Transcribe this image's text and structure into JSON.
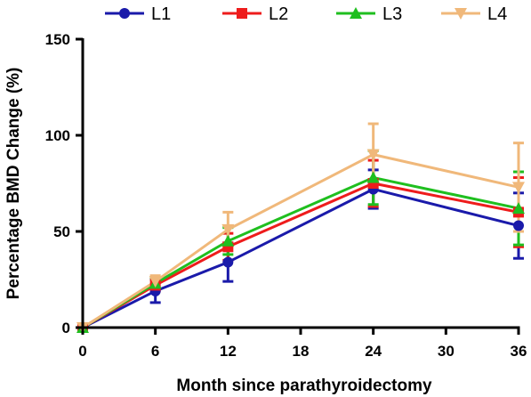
{
  "chart_data": {
    "type": "line",
    "title": "",
    "xlabel": "Month since parathyroidectomy",
    "ylabel": "Percentage BMD Change (%)",
    "xlim": [
      0,
      36
    ],
    "ylim": [
      0,
      150
    ],
    "x_ticks": [
      0,
      6,
      12,
      18,
      24,
      30,
      36
    ],
    "y_ticks": [
      0,
      50,
      100,
      150
    ],
    "grid": false,
    "legend_position": "top",
    "x": [
      0,
      6,
      12,
      24,
      36
    ],
    "series": [
      {
        "name": "L1",
        "color": "#1a1aaa",
        "marker": "circle",
        "values": [
          0,
          19,
          34,
          72,
          53
        ],
        "errors": [
          0,
          6,
          10,
          10,
          17
        ]
      },
      {
        "name": "L2",
        "color": "#ee1c1c",
        "marker": "square",
        "values": [
          0,
          22,
          42,
          75,
          60
        ],
        "errors": [
          0,
          3,
          7,
          12,
          18
        ]
      },
      {
        "name": "L3",
        "color": "#1fbf1f",
        "marker": "triangle-up",
        "values": [
          0,
          23,
          45,
          78,
          62
        ],
        "errors": [
          0,
          3,
          7,
          14,
          19
        ]
      },
      {
        "name": "L4",
        "color": "#f0b87a",
        "marker": "triangle-down",
        "values": [
          0,
          24,
          51,
          90,
          73
        ],
        "errors": [
          0,
          3,
          9,
          16,
          23
        ]
      }
    ]
  }
}
